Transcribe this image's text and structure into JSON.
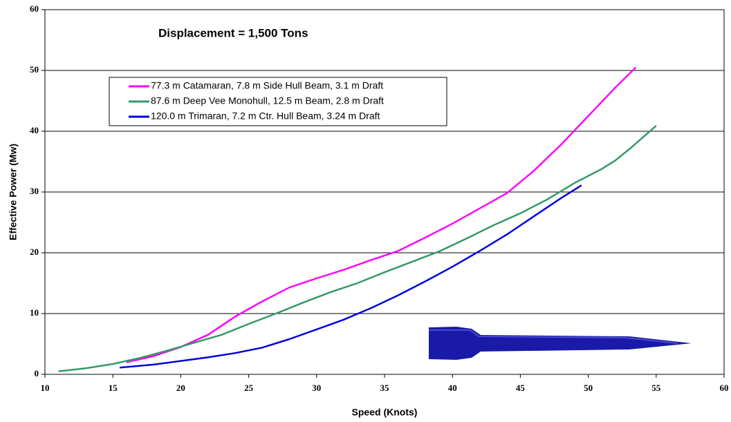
{
  "chart_data": {
    "type": "line",
    "title": "Displacement = 1,500 Tons",
    "x_label": "Speed (Knots)",
    "y_label": "Effective  Power (Mw)",
    "xlim": [
      10,
      60
    ],
    "xticks": [
      10,
      15,
      20,
      25,
      30,
      35,
      40,
      45,
      50,
      55,
      60
    ],
    "ylim": [
      0,
      60
    ],
    "yticks": [
      0,
      10,
      20,
      30,
      40,
      50,
      60
    ],
    "grid": true,
    "series": [
      {
        "name": "77.3 m Catamaran, 7.8 m Side Hull Beam, 3.1 m Draft",
        "color": "#ff00ff",
        "x": [
          16,
          18,
          20,
          22,
          24,
          26,
          28,
          30,
          32,
          34,
          36,
          38,
          40,
          42,
          44,
          46,
          48,
          50,
          52,
          53.5
        ],
        "values": [
          2.0,
          3.0,
          4.5,
          6.5,
          9.5,
          12.0,
          14.3,
          15.8,
          17.2,
          18.8,
          20.3,
          22.5,
          24.8,
          27.3,
          29.8,
          33.5,
          37.8,
          42.5,
          47.2,
          50.5
        ]
      },
      {
        "name": "87.6 m Deep Vee Monohull, 12.5 m Beam, 2.8 m Draft",
        "color": "#339966",
        "x": [
          11,
          13,
          15,
          17,
          19,
          21,
          23,
          25,
          27,
          29,
          31,
          33,
          35,
          37,
          39,
          41,
          43,
          45,
          47,
          49,
          51,
          52,
          53,
          55
        ],
        "values": [
          0.5,
          1.0,
          1.7,
          2.7,
          3.9,
          5.2,
          6.5,
          8.3,
          10.0,
          11.8,
          13.5,
          15.0,
          16.8,
          18.5,
          20.2,
          22.3,
          24.5,
          26.5,
          28.8,
          31.5,
          33.8,
          35.2,
          37.0,
          40.9
        ]
      },
      {
        "name": "120.0 m Trimaran, 7.2 m Ctr. Hull Beam, 3.24 m Draft",
        "color": "#0000dd",
        "x": [
          15.5,
          18,
          20,
          22,
          24,
          26,
          28,
          30,
          32,
          34,
          36,
          38,
          40,
          42,
          44,
          46,
          48,
          49.5
        ],
        "values": [
          1.1,
          1.6,
          2.2,
          2.8,
          3.5,
          4.4,
          5.8,
          7.4,
          9.0,
          10.9,
          13.0,
          15.3,
          17.7,
          20.3,
          23.0,
          26.0,
          29.0,
          31.1
        ]
      }
    ]
  }
}
